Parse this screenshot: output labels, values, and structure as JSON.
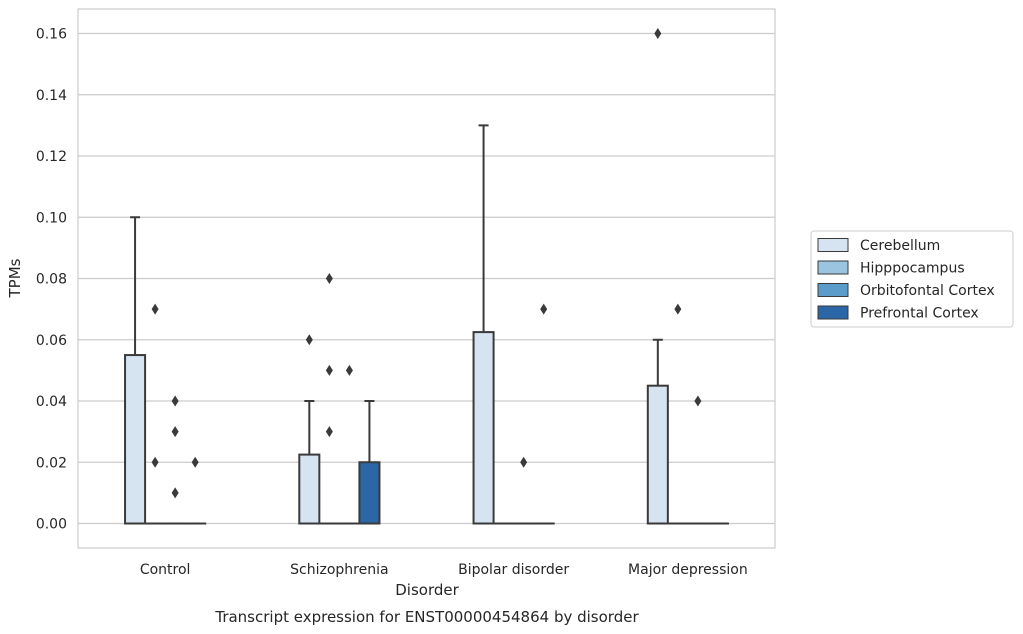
{
  "chart_data": {
    "type": "box",
    "caption": "Transcript expression for ENST00000454864 by disorder",
    "xlabel": "Disorder",
    "ylabel": "TPMs",
    "ylim": [
      -0.008,
      0.168
    ],
    "yticks": [
      0.0,
      0.02,
      0.04,
      0.06,
      0.08,
      0.1,
      0.12,
      0.14,
      0.16
    ],
    "ytick_labels": [
      "0.00",
      "0.02",
      "0.04",
      "0.06",
      "0.08",
      "0.10",
      "0.12",
      "0.14",
      "0.16"
    ],
    "grid": true,
    "legend_position": "right",
    "categories": [
      "Control",
      "Schizophrenia",
      "Bipolar disorder",
      "Major depression"
    ],
    "series": [
      {
        "name": "Cerebellum",
        "color": "#d6e4f2",
        "boxes": [
          {
            "q1": 0.0,
            "median": 0.0,
            "q3": 0.055,
            "whisker_low": 0.0,
            "whisker_high": 0.1,
            "outliers": []
          },
          {
            "q1": 0.0,
            "median": 0.0,
            "q3": 0.0225,
            "whisker_low": 0.0,
            "whisker_high": 0.04,
            "outliers": [
              0.06
            ]
          },
          {
            "q1": 0.0,
            "median": 0.0,
            "q3": 0.0625,
            "whisker_low": 0.0,
            "whisker_high": 0.13,
            "outliers": []
          },
          {
            "q1": 0.0,
            "median": 0.0,
            "q3": 0.045,
            "whisker_low": 0.0,
            "whisker_high": 0.06,
            "outliers": [
              0.16
            ]
          }
        ]
      },
      {
        "name": "Hipppocampus",
        "color": "#9ac4e0",
        "boxes": [
          {
            "q1": 0.0,
            "median": 0.0,
            "q3": 0.0,
            "whisker_low": 0.0,
            "whisker_high": 0.0,
            "outliers": [
              0.07,
              0.02
            ]
          },
          {
            "q1": 0.0,
            "median": 0.0,
            "q3": 0.0,
            "whisker_low": 0.0,
            "whisker_high": 0.0,
            "outliers": [
              0.08,
              0.05,
              0.03
            ]
          },
          {
            "q1": 0.0,
            "median": 0.0,
            "q3": 0.0,
            "whisker_low": 0.0,
            "whisker_high": 0.0,
            "outliers": []
          },
          {
            "q1": 0.0,
            "median": 0.0,
            "q3": 0.0,
            "whisker_low": 0.0,
            "whisker_high": 0.0,
            "outliers": [
              0.07
            ]
          }
        ]
      },
      {
        "name": "Orbitofontal Cortex",
        "color": "#5c9ccb",
        "boxes": [
          {
            "q1": 0.0,
            "median": 0.0,
            "q3": 0.0,
            "whisker_low": 0.0,
            "whisker_high": 0.0,
            "outliers": [
              0.04,
              0.03,
              0.01
            ]
          },
          {
            "q1": 0.0,
            "median": 0.0,
            "q3": 0.0,
            "whisker_low": 0.0,
            "whisker_high": 0.0,
            "outliers": [
              0.05
            ]
          },
          {
            "q1": 0.0,
            "median": 0.0,
            "q3": 0.0,
            "whisker_low": 0.0,
            "whisker_high": 0.0,
            "outliers": [
              0.02
            ]
          },
          {
            "q1": 0.0,
            "median": 0.0,
            "q3": 0.0,
            "whisker_low": 0.0,
            "whisker_high": 0.0,
            "outliers": [
              0.04
            ]
          }
        ]
      },
      {
        "name": "Prefrontal Cortex",
        "color": "#2b67a6",
        "boxes": [
          {
            "q1": 0.0,
            "median": 0.0,
            "q3": 0.0,
            "whisker_low": 0.0,
            "whisker_high": 0.0,
            "outliers": [
              0.02
            ]
          },
          {
            "q1": 0.0,
            "median": 0.0,
            "q3": 0.02,
            "whisker_low": 0.0,
            "whisker_high": 0.04,
            "outliers": []
          },
          {
            "q1": 0.0,
            "median": 0.0,
            "q3": 0.0,
            "whisker_low": 0.0,
            "whisker_high": 0.0,
            "outliers": [
              0.07
            ]
          },
          {
            "q1": 0.0,
            "median": 0.0,
            "q3": 0.0,
            "whisker_low": 0.0,
            "whisker_high": 0.0,
            "outliers": []
          }
        ]
      }
    ]
  }
}
